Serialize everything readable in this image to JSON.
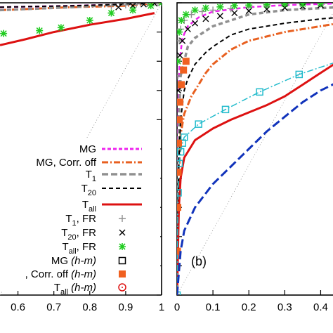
{
  "chart_data": [
    {
      "type": "line",
      "panel_label": "",
      "xlim": [
        0.55,
        1.0
      ],
      "ylim": [
        0,
        1
      ],
      "x_ticks": [
        "0.6",
        "0.7",
        "0.8",
        "0.9",
        "1"
      ],
      "legend_placement": "bottom-right",
      "series": [
        {
          "name": "MG",
          "color": "#ee22ee",
          "style": "dashed",
          "marker": "none",
          "x": [
            0.55,
            0.75,
            0.9,
            1.0
          ],
          "y": [
            0.985,
            0.99,
            0.995,
            1.0
          ]
        },
        {
          "name": "MG, Corr. off",
          "color": "#e86020",
          "style": "dash-dot",
          "marker": "none",
          "x": [
            0.55,
            0.75,
            0.9,
            1.0
          ],
          "y": [
            0.975,
            0.985,
            0.99,
            1.0
          ]
        },
        {
          "name": "T_1",
          "color": "#909090",
          "style": "dashed",
          "marker": "none",
          "x": [
            0.55,
            0.75,
            0.9,
            1.0
          ],
          "y": [
            0.975,
            0.985,
            0.995,
            1.0
          ]
        },
        {
          "name": "T_20",
          "color": "#000000",
          "style": "dashed",
          "marker": "none",
          "x": [
            0.55,
            0.75,
            0.9,
            1.0
          ],
          "y": [
            0.985,
            0.99,
            0.995,
            1.0
          ]
        },
        {
          "name": "T_all",
          "color": "#dd1111",
          "style": "solid",
          "marker": "none",
          "x": [
            0.55,
            0.62,
            0.7,
            0.8,
            0.9,
            0.98
          ],
          "y": [
            0.855,
            0.875,
            0.9,
            0.925,
            0.945,
            0.965
          ]
        },
        {
          "name": "T_1, FR",
          "color": "#909090",
          "style": "points",
          "marker": "plus",
          "x": [
            0.86,
            0.9,
            0.93,
            0.96,
            0.99
          ],
          "y": [
            0.99,
            0.993,
            0.996,
            0.998,
            1.0
          ]
        },
        {
          "name": "T_20, FR",
          "color": "#000000",
          "style": "points",
          "marker": "cross",
          "x": [
            0.88,
            0.92,
            0.95,
            0.98
          ],
          "y": [
            0.985,
            0.99,
            0.995,
            0.998
          ]
        },
        {
          "name": "T_all, FR",
          "color": "#22cc22",
          "style": "points",
          "marker": "asterisk",
          "x": [
            0.56,
            0.66,
            0.72,
            0.8,
            0.86,
            0.92,
            0.97,
            1.0
          ],
          "y": [
            0.895,
            0.905,
            0.915,
            0.94,
            0.965,
            0.975,
            0.99,
            1.0
          ]
        },
        {
          "name": "MG (h-m)",
          "color": "#000000",
          "style": "points",
          "marker": "open-square",
          "x": [],
          "y": []
        },
        {
          "name": ", Corr. off (h-m)",
          "color": "#f06020",
          "style": "points",
          "marker": "filled-square",
          "x": [],
          "y": []
        },
        {
          "name": "T_all (h-m)",
          "color": "#dd1111",
          "style": "points",
          "marker": "dotted-circle",
          "x": [],
          "y": []
        }
      ]
    },
    {
      "type": "line",
      "panel_label": "(b)",
      "xlim": [
        0,
        0.45
      ],
      "ylim": [
        0,
        1
      ],
      "x_ticks": [
        "0",
        "0.1",
        "0.2",
        "0.3",
        "0.4"
      ],
      "series": [
        {
          "name": "MG",
          "color": "#ee22ee",
          "style": "dashed",
          "marker": "none",
          "x": [
            0,
            0.003,
            0.007,
            0.015,
            0.03,
            0.06,
            0.1,
            0.2,
            0.3,
            0.4,
            0.45
          ],
          "y": [
            0,
            0.6,
            0.8,
            0.88,
            0.92,
            0.95,
            0.97,
            0.985,
            0.992,
            0.996,
            0.998
          ]
        },
        {
          "name": "MG, Corr. off",
          "color": "#e86020",
          "style": "dash-dot",
          "marker": "none",
          "x": [
            0,
            0.005,
            0.01,
            0.02,
            0.04,
            0.06,
            0.08,
            0.1,
            0.15,
            0.2,
            0.3,
            0.4,
            0.45
          ],
          "y": [
            0,
            0.4,
            0.55,
            0.62,
            0.68,
            0.72,
            0.76,
            0.79,
            0.84,
            0.87,
            0.9,
            0.92,
            0.93
          ]
        },
        {
          "name": "T_1",
          "color": "#909090",
          "style": "dashed",
          "marker": "none",
          "x": [
            0,
            0.005,
            0.01,
            0.03,
            0.05,
            0.1,
            0.15,
            0.2,
            0.3,
            0.45
          ],
          "y": [
            0,
            0.6,
            0.75,
            0.85,
            0.88,
            0.92,
            0.94,
            0.96,
            0.975,
            0.985
          ]
        },
        {
          "name": "T_20",
          "color": "#000000",
          "style": "dashed",
          "marker": "none",
          "x": [
            0,
            0.005,
            0.01,
            0.02,
            0.03,
            0.05,
            0.08,
            0.1,
            0.15,
            0.2,
            0.3,
            0.4,
            0.45
          ],
          "y": [
            0,
            0.45,
            0.6,
            0.7,
            0.74,
            0.79,
            0.83,
            0.85,
            0.89,
            0.91,
            0.93,
            0.945,
            0.95
          ]
        },
        {
          "name": "T_all",
          "color": "#dd1111",
          "style": "solid",
          "marker": "none",
          "x": [
            0,
            0.005,
            0.01,
            0.02,
            0.05,
            0.1,
            0.15,
            0.2,
            0.25,
            0.3,
            0.35,
            0.4,
            0.45
          ],
          "y": [
            0,
            0.3,
            0.4,
            0.47,
            0.53,
            0.57,
            0.6,
            0.625,
            0.65,
            0.68,
            0.72,
            0.76,
            0.8
          ]
        },
        {
          "name": "T_1, FR",
          "color": "#909090",
          "style": "points",
          "marker": "plus",
          "x": [
            0.002,
            0.006,
            0.01,
            0.02,
            0.04,
            0.07,
            0.1,
            0.15,
            0.2,
            0.25,
            0.3,
            0.35,
            0.4,
            0.45
          ],
          "y": [
            0.75,
            0.87,
            0.91,
            0.94,
            0.96,
            0.97,
            0.975,
            0.98,
            0.985,
            0.99,
            0.992,
            0.994,
            0.996,
            0.998
          ]
        },
        {
          "name": "T_20, FR",
          "color": "#000000",
          "style": "points",
          "marker": "cross",
          "x": [
            0.003,
            0.008,
            0.015,
            0.03,
            0.05,
            0.08,
            0.12,
            0.16,
            0.2,
            0.25,
            0.3,
            0.35,
            0.4,
            0.45
          ],
          "y": [
            0.7,
            0.82,
            0.87,
            0.91,
            0.93,
            0.945,
            0.955,
            0.965,
            0.972,
            0.978,
            0.983,
            0.988,
            0.992,
            0.995
          ]
        },
        {
          "name": "T_all, FR",
          "color": "#22cc22",
          "style": "points",
          "marker": "asterisk",
          "x": [
            0.002,
            0.006,
            0.012,
            0.025,
            0.05,
            0.08,
            0.12,
            0.16,
            0.2,
            0.25,
            0.3,
            0.35,
            0.4
          ],
          "y": [
            0.8,
            0.9,
            0.94,
            0.96,
            0.975,
            0.982,
            0.986,
            0.99,
            0.992,
            0.994,
            0.996,
            0.997,
            0.998
          ]
        },
        {
          "name": "MG (h-m)",
          "color": "#22bbcc",
          "style": "dash-dot",
          "marker": "open-square",
          "x": [
            0,
            0.003,
            0.006,
            0.01,
            0.015,
            0.02,
            0.06,
            0.135,
            0.23,
            0.34,
            0.45
          ],
          "y": [
            0,
            0.35,
            0.45,
            0.49,
            0.52,
            0.54,
            0.585,
            0.635,
            0.695,
            0.755,
            0.8
          ]
        },
        {
          "name": ", Corr. off (h-m)",
          "color": "#f06020",
          "style": "points",
          "marker": "filled-square",
          "x": [
            0.001,
            0.002,
            0.003,
            0.004,
            0.006,
            0.008,
            0.012,
            0.018,
            0.025
          ],
          "y": [
            0.15,
            0.3,
            0.42,
            0.52,
            0.6,
            0.66,
            0.72,
            0.77,
            0.8
          ]
        },
        {
          "name": "T_all (h-m)",
          "color": "#1133bb",
          "style": "long-dash",
          "marker": "none",
          "x": [
            0,
            0.01,
            0.02,
            0.05,
            0.1,
            0.15,
            0.2,
            0.25,
            0.3,
            0.35,
            0.4,
            0.45
          ],
          "y": [
            0,
            0.15,
            0.22,
            0.3,
            0.38,
            0.44,
            0.5,
            0.56,
            0.61,
            0.66,
            0.7,
            0.73
          ]
        }
      ]
    }
  ],
  "legend": [
    {
      "name": "MG",
      "base": "MG",
      "sub": "",
      "tail": "",
      "italic": "",
      "sample": "line",
      "color": "#ee22ee",
      "dash": "5,3",
      "width": 3
    },
    {
      "name": "MG, Corr. off",
      "base": "MG, Corr. off",
      "sub": "",
      "tail": "",
      "italic": "",
      "sample": "line",
      "color": "#e86020",
      "dash": "9,3,2,3",
      "width": 3
    },
    {
      "name": "T_1",
      "base": "T",
      "sub": "1",
      "tail": "",
      "italic": "",
      "sample": "line",
      "color": "#909090",
      "dash": "9,4",
      "width": 3.5
    },
    {
      "name": "T_20",
      "base": "T",
      "sub": "20",
      "tail": "",
      "italic": "",
      "sample": "line",
      "color": "#000000",
      "dash": "6,4",
      "width": 2
    },
    {
      "name": "T_all",
      "base": "T",
      "sub": "all",
      "tail": "",
      "italic": "",
      "sample": "line",
      "color": "#dd1111",
      "dash": "",
      "width": 3
    },
    {
      "name": "T_1, FR",
      "base": "T",
      "sub": "1",
      "tail": ", FR",
      "italic": "",
      "sample": "plus",
      "color": "#909090"
    },
    {
      "name": "T_20, FR",
      "base": "T",
      "sub": "20",
      "tail": ", FR",
      "italic": "",
      "sample": "cross",
      "color": "#000000"
    },
    {
      "name": "T_all, FR",
      "base": "T",
      "sub": "all",
      "tail": ", FR",
      "italic": "",
      "sample": "asterisk",
      "color": "#22cc22"
    },
    {
      "name": "MG (h-m)",
      "base": "MG ",
      "sub": "",
      "tail": "",
      "italic": "(h-m)",
      "sample": "open-square",
      "color": "#000000"
    },
    {
      "name": ", Corr. off (h-m)",
      "base": ", Corr. off ",
      "sub": "",
      "tail": "",
      "italic": "(h-m)",
      "sample": "filled-square",
      "color": "#f06020"
    },
    {
      "name": "T_all (h-m)",
      "base": "T",
      "sub": "all",
      "tail": " ",
      "italic": "(h-m)",
      "sample": "dotted-circle",
      "color": "#dd1111"
    }
  ]
}
